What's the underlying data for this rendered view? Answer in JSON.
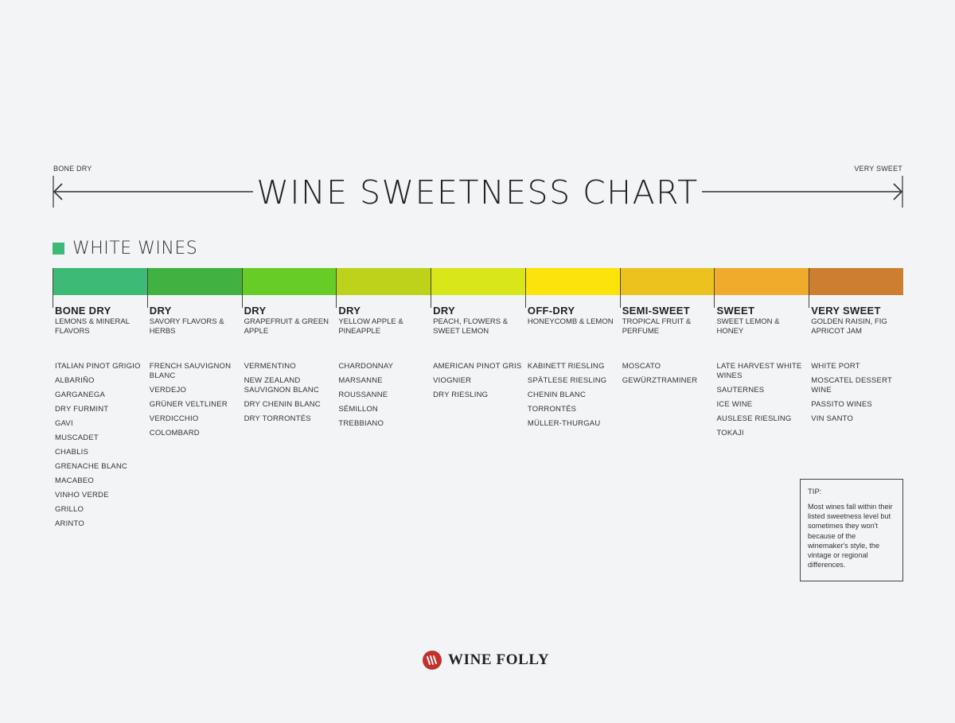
{
  "labels": {
    "left": "BONE DRY",
    "right": "VERY SWEET"
  },
  "title": "WINE SWEETNESS CHART",
  "section": {
    "label": "WHITE WINES",
    "color": "#3dba74"
  },
  "scale_colors": [
    "#3dba74",
    "#41b241",
    "#67cd26",
    "#bcd21b",
    "#d8e61a",
    "#fce30a",
    "#ebc21e",
    "#f0ab2c",
    "#cd7e30"
  ],
  "columns": [
    {
      "category": "BONE DRY",
      "flavors": "LEMONS & MINERAL FLAVORS",
      "wines": [
        "ITALIAN PINOT GRIGIO",
        "ALBARIÑO",
        "GARGANEGA",
        "DRY FURMINT",
        "GAVI",
        "MUSCADET",
        "CHABLIS",
        "GRENACHE BLANC",
        "MACABEO",
        "VINHO VERDE",
        "GRILLO",
        "ARINTO"
      ]
    },
    {
      "category": "DRY",
      "flavors": "SAVORY FLAVORS & HERBS",
      "wines": [
        "FRENCH SAUVIGNON BLANC",
        "VERDEJO",
        "GRÜNER VELTLINER",
        "VERDICCHIO",
        "COLOMBARD"
      ]
    },
    {
      "category": "DRY",
      "flavors": "GRAPEFRUIT & GREEN APPLE",
      "wines": [
        "VERMENTINO",
        "NEW ZEALAND SAUVIGNON BLANC",
        "DRY CHENIN BLANC",
        "DRY TORRONTÉS"
      ]
    },
    {
      "category": "DRY",
      "flavors": "YELLOW APPLE & PINEAPPLE",
      "wines": [
        "CHARDONNAY",
        "MARSANNE",
        "ROUSSANNE",
        "SÉMILLON",
        "TREBBIANO"
      ]
    },
    {
      "category": "DRY",
      "flavors": "PEACH, FLOWERS & SWEET LEMON",
      "wines": [
        "AMERICAN PINOT GRIS",
        "VIOGNIER",
        "DRY RIESLING"
      ]
    },
    {
      "category": "OFF-DRY",
      "flavors": "HONEYCOMB & LEMON",
      "wines": [
        "KABINETT RIESLING",
        "SPÄTLESE RIESLING",
        "CHENIN BLANC",
        "TORRONTÉS",
        "MÜLLER-THURGAU"
      ]
    },
    {
      "category": "SEMI-SWEET",
      "flavors": "TROPICAL FRUIT & PERFUME",
      "wines": [
        "MOSCATO",
        "GEWÜRZTRAMINER"
      ]
    },
    {
      "category": "SWEET",
      "flavors": "SWEET LEMON & HONEY",
      "wines": [
        "LATE HARVEST WHITE WINES",
        "SAUTERNES",
        "ICE WINE",
        "AUSLESE RIESLING",
        "TOKAJI"
      ]
    },
    {
      "category": "VERY SWEET",
      "flavors": "GOLDEN RAISIN, FIG APRICOT JAM",
      "wines": [
        "WHITE PORT",
        "MOSCATEL DESSERT WINE",
        "PASSITO WINES",
        "VIN SANTO"
      ]
    }
  ],
  "tip": {
    "title": "TIP:",
    "body": "Most wines fall within their listed sweetness level but sometimes they won't because of the winemaker's style, the vintage or regional differences."
  },
  "brand": {
    "name": "WINE FOLLY",
    "color": "#c4302b"
  }
}
